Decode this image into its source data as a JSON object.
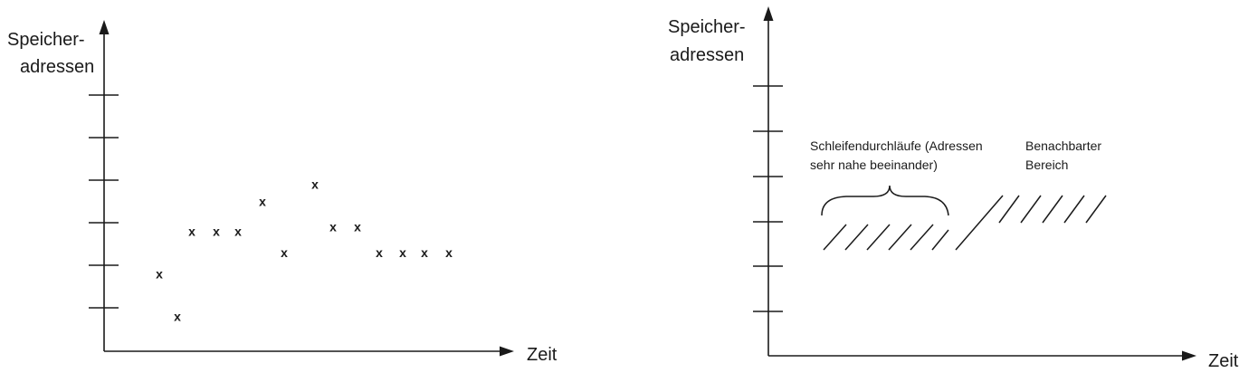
{
  "left_diagram": {
    "y_axis_label": [
      "Speicher-",
      "adressen"
    ],
    "x_axis_label": "Zeit",
    "marker_symbol": "x",
    "points": [
      {
        "x": 1,
        "y": 1.8
      },
      {
        "x": 2,
        "y": 0.8
      },
      {
        "x": 3,
        "y": 2.8
      },
      {
        "x": 4,
        "y": 2.8
      },
      {
        "x": 5,
        "y": 2.8
      },
      {
        "x": 6,
        "y": 3.5
      },
      {
        "x": 7,
        "y": 2.3
      },
      {
        "x": 8,
        "y": 3.9
      },
      {
        "x": 9,
        "y": 2.9
      },
      {
        "x": 10,
        "y": 2.9
      },
      {
        "x": 11,
        "y": 2.3
      },
      {
        "x": 12,
        "y": 2.3
      },
      {
        "x": 13,
        "y": 2.3
      },
      {
        "x": 14,
        "y": 2.3
      }
    ]
  },
  "right_diagram": {
    "y_axis_label": [
      "Speicher-",
      "adressen"
    ],
    "x_axis_label": "Zeit",
    "loop_annotation": [
      "Schleifendurchläufe (Adressen",
      "sehr nahe beeinander)"
    ],
    "neighbor_annotation": [
      "Benachbarter",
      "Bereich"
    ]
  }
}
